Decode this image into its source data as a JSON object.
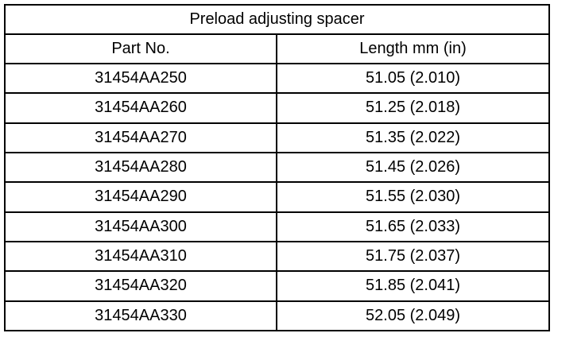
{
  "table": {
    "title": "Preload adjusting spacer",
    "headers": [
      "Part No.",
      "Length mm (in)"
    ],
    "rows": [
      [
        "31454AA250",
        "51.05 (2.010)"
      ],
      [
        "31454AA260",
        "51.25 (2.018)"
      ],
      [
        "31454AA270",
        "51.35 (2.022)"
      ],
      [
        "31454AA280",
        "51.45 (2.026)"
      ],
      [
        "31454AA290",
        "51.55 (2.030)"
      ],
      [
        "31454AA300",
        "51.65 (2.033)"
      ],
      [
        "31454AA310",
        "51.75 (2.037)"
      ],
      [
        "31454AA320",
        "51.85 (2.041)"
      ],
      [
        "31454AA330",
        "52.05 (2.049)"
      ]
    ]
  }
}
